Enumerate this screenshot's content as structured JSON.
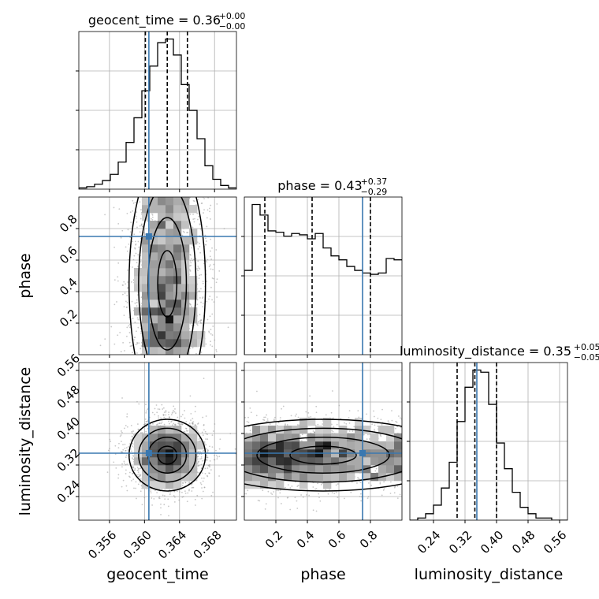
{
  "colors": {
    "truth": "#3a78b0",
    "hist": "#000000",
    "grid": "#b0b0b0",
    "scatter": "#9a9a9a",
    "background": "#ffffff"
  },
  "chart_data": {
    "type": "corner",
    "grid": true,
    "parameters": [
      {
        "key": "geocent_time",
        "axis_label": "geocent_time",
        "title_text": "geocent_time = 0.36",
        "title_sup": "+0.00",
        "title_sub": "−0.00",
        "range": [
          0.3525,
          0.3705
        ],
        "ticks": [
          0.356,
          0.36,
          0.364,
          0.368
        ],
        "tick_labels": [
          "0.356",
          "0.360",
          "0.364",
          "0.368"
        ],
        "truth": 0.3605,
        "quantiles": [
          0.3601,
          0.3626,
          0.3649
        ],
        "hist_bins": [
          0.3525,
          0.3534,
          0.3543,
          0.3552,
          0.3561,
          0.357,
          0.3579,
          0.3588,
          0.3597,
          0.3606,
          0.3615,
          0.3624,
          0.3633,
          0.3642,
          0.3651,
          0.366,
          0.3669,
          0.3678,
          0.3687,
          0.3696,
          0.3705
        ],
        "hist_counts": [
          1,
          2,
          4,
          7,
          12,
          22,
          38,
          58,
          80,
          100,
          119,
          122,
          109,
          85,
          64,
          41,
          19,
          8,
          3,
          1
        ]
      },
      {
        "key": "phase",
        "axis_label": "phase",
        "title_text": "phase = 0.43",
        "title_sup": "+0.37",
        "title_sub": "−0.29",
        "range": [
          0.0,
          1.0
        ],
        "ticks": [
          0.2,
          0.4,
          0.6,
          0.8
        ],
        "tick_labels": [
          "0.2",
          "0.4",
          "0.6",
          "0.8"
        ],
        "truth": 0.75,
        "quantiles": [
          0.13,
          0.43,
          0.8
        ],
        "hist_bins": [
          0.0,
          0.05,
          0.1,
          0.15,
          0.2,
          0.25,
          0.3,
          0.35,
          0.4,
          0.45,
          0.5,
          0.55,
          0.6,
          0.65,
          0.7,
          0.75,
          0.8,
          0.85,
          0.9,
          0.95,
          1.0
        ],
        "hist_counts": [
          64,
          114,
          106,
          94,
          93,
          90,
          92,
          91,
          88,
          92,
          81,
          75,
          72,
          67,
          64,
          62,
          61,
          62,
          73,
          72
        ]
      },
      {
        "key": "luminosity_distance",
        "axis_label": "luminosity_distance",
        "title_text": "luminosity_distance = 0.35",
        "title_sup": "+0.05",
        "title_sub": "−0.05",
        "range": [
          0.18,
          0.58
        ],
        "ticks": [
          0.24,
          0.32,
          0.4,
          0.48,
          0.56
        ],
        "tick_labels": [
          "0.24",
          "0.32",
          "0.40",
          "0.48",
          "0.56"
        ],
        "truth": 0.35,
        "quantiles": [
          0.3,
          0.345,
          0.4
        ],
        "hist_bins": [
          0.18,
          0.2,
          0.22,
          0.24,
          0.26,
          0.28,
          0.3,
          0.32,
          0.34,
          0.36,
          0.38,
          0.4,
          0.42,
          0.44,
          0.46,
          0.48,
          0.5,
          0.52,
          0.54,
          0.56,
          0.58
        ],
        "hist_counts": [
          0,
          1,
          3,
          7,
          15,
          27,
          46,
          62,
          70,
          69,
          54,
          36,
          24,
          13,
          6,
          3,
          1,
          1,
          0,
          0
        ]
      }
    ],
    "contour_levels": [
      "0.5",
      "1.0",
      "1.5",
      "2.0"
    ],
    "scatter_points_per_panel": 2200,
    "seed": 7
  }
}
